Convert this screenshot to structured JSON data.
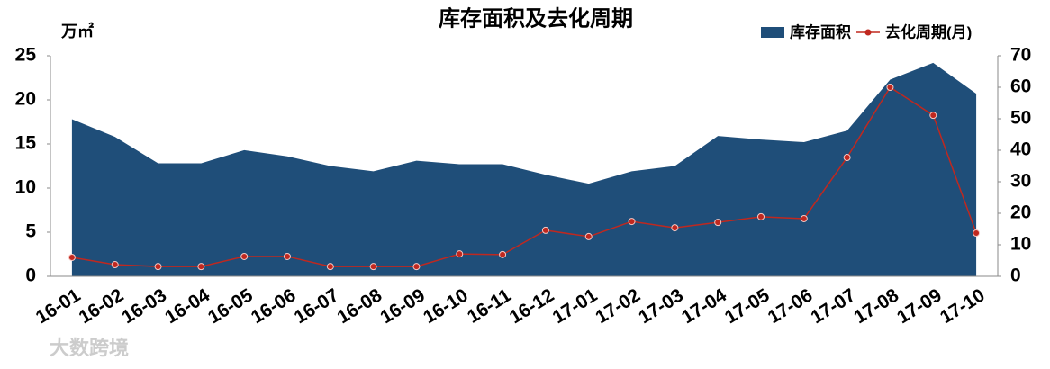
{
  "chart_data": {
    "type": "area-line",
    "title": "库存面积及去化周期",
    "y_label": "万㎡",
    "watermark": "大数跨境",
    "categories": [
      "16-01",
      "16-02",
      "16-03",
      "16-04",
      "16-05",
      "16-06",
      "16-07",
      "16-08",
      "16-09",
      "16-10",
      "16-11",
      "16-12",
      "17-01",
      "17-02",
      "17-03",
      "17-04",
      "17-05",
      "17-06",
      "17-07",
      "17-08",
      "17-09",
      "17-10"
    ],
    "series": [
      {
        "name": "库存面积",
        "type": "area",
        "color": "#1f4e79",
        "values": [
          17.8,
          15.8,
          12.8,
          12.8,
          14.3,
          13.6,
          12.5,
          11.9,
          13.1,
          12.7,
          12.7,
          11.5,
          10.5,
          11.9,
          12.5,
          15.9,
          15.5,
          15.2,
          16.5,
          22.3,
          24.2,
          20.7
        ]
      },
      {
        "name": "去化周期(月)",
        "type": "line",
        "axis": "y2",
        "color": "#c0281f",
        "values": [
          6,
          3.7,
          3.1,
          3.1,
          6.3,
          6.3,
          3.1,
          3.1,
          3.1,
          7.1,
          6.9,
          14.6,
          12.6,
          17.4,
          15.4,
          17.1,
          18.9,
          18.3,
          37.7,
          60,
          51.1,
          13.7
        ]
      }
    ],
    "ylim": [
      0,
      25
    ],
    "yticks": [
      0,
      5,
      10,
      15,
      20,
      25
    ],
    "y2lim": [
      0,
      70
    ],
    "y2ticks": [
      0,
      10,
      20,
      30,
      40,
      50,
      60,
      70
    ],
    "legend": "top-right"
  }
}
